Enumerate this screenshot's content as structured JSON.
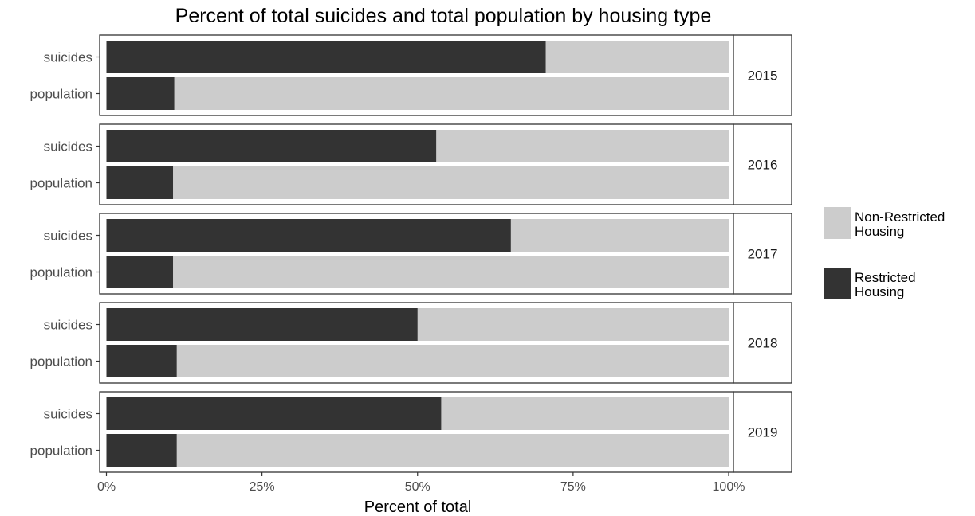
{
  "chart_data": {
    "type": "bar",
    "orientation": "horizontal",
    "stacked": true,
    "title": "Percent of total suicides and total population by housing type",
    "xlabel": "Percent of total",
    "ylabel": "",
    "xlim": [
      0,
      100
    ],
    "x_ticks": [
      "0%",
      "25%",
      "50%",
      "75%",
      "100%"
    ],
    "categories": [
      "suicides",
      "population"
    ],
    "legend_position": "right",
    "grid": false,
    "series": [
      {
        "name": "Non-Restricted Housing",
        "color": "#cccccc"
      },
      {
        "name": "Restricted Housing",
        "color": "#333333"
      }
    ],
    "facets": [
      {
        "label": "2015",
        "restricted": [
          70.6,
          10.9
        ],
        "non_restricted": [
          29.4,
          89.1
        ]
      },
      {
        "label": "2016",
        "restricted": [
          53.0,
          10.7
        ],
        "non_restricted": [
          47.0,
          89.3
        ]
      },
      {
        "label": "2017",
        "restricted": [
          65.0,
          10.7
        ],
        "non_restricted": [
          35.0,
          89.3
        ]
      },
      {
        "label": "2018",
        "restricted": [
          50.0,
          11.3
        ],
        "non_restricted": [
          50.0,
          88.7
        ]
      },
      {
        "label": "2019",
        "restricted": [
          53.8,
          11.3
        ],
        "non_restricted": [
          46.2,
          88.7
        ]
      }
    ]
  },
  "legend": {
    "items": [
      {
        "line1": "Non-Restricted",
        "line2": "Housing",
        "color": "#cccccc"
      },
      {
        "line1": "Restricted",
        "line2": "Housing",
        "color": "#333333"
      }
    ]
  }
}
